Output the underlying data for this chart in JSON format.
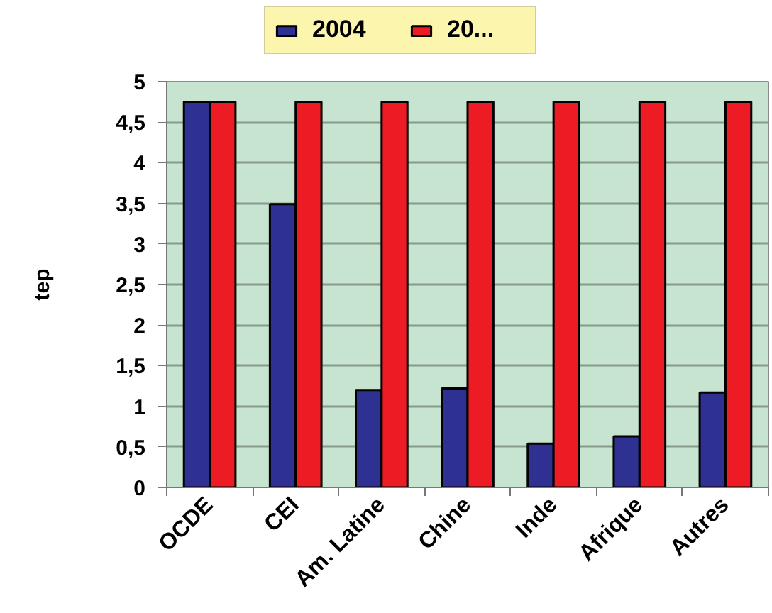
{
  "chart_data": {
    "type": "bar",
    "categories": [
      "OCDE",
      "CEI",
      "Am. Latine",
      "Chine",
      "Inde",
      "Afrique",
      "Autres"
    ],
    "ylabel": "tep",
    "series": [
      {
        "name": "2004",
        "color": "#2e3192",
        "values": [
          4.75,
          3.49,
          1.2,
          1.22,
          0.54,
          0.63,
          1.17
        ]
      },
      {
        "name": "20...",
        "color": "#ed1c24",
        "values": [
          4.75,
          4.75,
          4.75,
          4.75,
          4.75,
          4.75,
          4.75
        ]
      }
    ],
    "ylim": [
      0,
      5
    ],
    "yticks": [
      0,
      {
        "value": 0.5,
        "label": "0,5"
      },
      1,
      {
        "value": 1.5,
        "label": "1,5"
      },
      2,
      {
        "value": 2.5,
        "label": "2,5"
      },
      3,
      {
        "value": 3.5,
        "label": "3,5"
      },
      4,
      {
        "value": 4.5,
        "label": "4,5"
      },
      5
    ],
    "grid": "y",
    "legend": "top"
  }
}
